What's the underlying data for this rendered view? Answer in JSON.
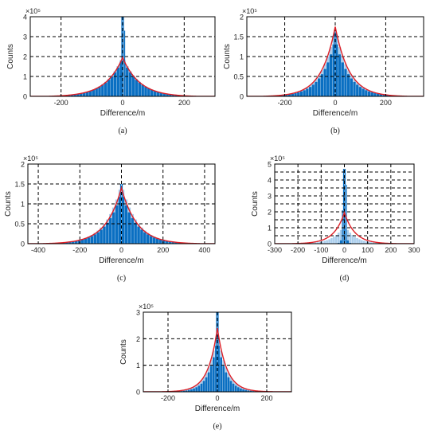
{
  "colors": {
    "bar_dark": "#0a6fc2",
    "bar_light": "#a9cdec",
    "fit_curve": "#dd1f26",
    "grid": "#000000",
    "axis": "#000000"
  },
  "chart_data": [
    {
      "type": "bar",
      "panel_label": "(a)",
      "xlabel": "Difference/m",
      "ylabel": "Counts",
      "y_exponent_label": "×10⁵",
      "xlim": [
        -300,
        300
      ],
      "ylim": [
        0,
        4
      ],
      "xticks": [
        -200,
        0,
        200
      ],
      "xtick_labels": [
        "-200",
        "0",
        "200"
      ],
      "yticks": [
        0,
        1,
        2,
        3,
        4
      ],
      "ytick_labels": [
        "0",
        "1",
        "2",
        "3",
        "4"
      ],
      "grid": true,
      "histogram": {
        "dark_scale": 1.9,
        "dark_width": 55,
        "dark_support": 290,
        "light_scale": 2.0,
        "light_width": 55,
        "light_support": 290,
        "spikes": [
          {
            "x": 0,
            "value": 4.0
          },
          {
            "x": 4,
            "value": 3.3
          }
        ]
      },
      "fit": {
        "peak": 1.95,
        "width": 55,
        "support": 250
      }
    },
    {
      "type": "bar",
      "panel_label": "(b)",
      "xlabel": "Difference/m",
      "ylabel": "Counts",
      "y_exponent_label": "×10⁵",
      "xlim": [
        -350,
        350
      ],
      "ylim": [
        0,
        2
      ],
      "xticks": [
        -200,
        0,
        200
      ],
      "xtick_labels": [
        "-200",
        "0",
        "200"
      ],
      "yticks": [
        0,
        0.5,
        1,
        1.5,
        2
      ],
      "ytick_labels": [
        "0",
        "0.5",
        "1",
        "1.5",
        "2"
      ],
      "grid": true,
      "histogram": {
        "dark_scale": 1.45,
        "dark_width": 55,
        "dark_support": 330,
        "light_scale": 1.7,
        "light_width": 55,
        "light_support": 330,
        "spikes": [
          {
            "x": 0,
            "value": 1.65
          }
        ]
      },
      "fit": {
        "peak": 1.75,
        "width": 55,
        "support": 300
      }
    },
    {
      "type": "bar",
      "panel_label": "(c)",
      "xlabel": "Difference/m",
      "ylabel": "Counts",
      "y_exponent_label": "×10⁵",
      "xlim": [
        -450,
        450
      ],
      "ylim": [
        0,
        2
      ],
      "xticks": [
        -400,
        -200,
        0,
        200,
        400
      ],
      "xtick_labels": [
        "-400",
        "-200",
        "0",
        "200",
        "400"
      ],
      "yticks": [
        0,
        0.5,
        1,
        1.5,
        2
      ],
      "ytick_labels": [
        "0",
        "0.5",
        "1",
        "1.5",
        "2"
      ],
      "grid": true,
      "histogram": {
        "dark_scale": 1.3,
        "dark_width": 75,
        "dark_support": 420,
        "light_scale": 1.5,
        "light_width": 75,
        "light_support": 420,
        "spikes": [
          {
            "x": 0,
            "value": 1.5
          }
        ]
      },
      "fit": {
        "peak": 1.4,
        "width": 75,
        "support": 400
      }
    },
    {
      "type": "bar",
      "panel_label": "(d)",
      "xlabel": "Difference/m",
      "ylabel": "Counts",
      "y_exponent_label": "×10⁵",
      "xlim": [
        -300,
        300
      ],
      "ylim": [
        0,
        5
      ],
      "xticks": [
        -300,
        -200,
        -100,
        0,
        100,
        200,
        300
      ],
      "xtick_labels": [
        "-300",
        "-200",
        "-100",
        "0",
        "100",
        "200",
        "300"
      ],
      "yticks": [
        0,
        0.5,
        1,
        1.5,
        2,
        2.5,
        3,
        3.5,
        4,
        4.5,
        5
      ],
      "ytick_labels": [
        "0",
        "0.5",
        "1",
        "1.5",
        "2",
        "2.5",
        "3",
        "3.5",
        "4",
        "4.5",
        "5"
      ],
      "grid": true,
      "histogram": {
        "dark_scale": 1.4,
        "dark_width": 8,
        "dark_support": 40,
        "light_scale": 1.2,
        "light_width": 45,
        "light_support": 280,
        "spikes": [
          {
            "x": 0,
            "value": 4.7
          },
          {
            "x": 5,
            "value": 3.7
          },
          {
            "x": -5,
            "value": 2.1
          }
        ]
      },
      "fit": {
        "peak": 1.95,
        "width": 45,
        "support": 250
      }
    },
    {
      "type": "bar",
      "panel_label": "(e)",
      "xlabel": "Difference/m",
      "ylabel": "Counts",
      "y_exponent_label": "×10⁵",
      "xlim": [
        -300,
        300
      ],
      "ylim": [
        0,
        3
      ],
      "xticks": [
        -200,
        0,
        200
      ],
      "xtick_labels": [
        "-200",
        "0",
        "200"
      ],
      "yticks": [
        0,
        1,
        2,
        3
      ],
      "ytick_labels": [
        "0",
        "1",
        "2",
        "3"
      ],
      "grid": true,
      "histogram": {
        "dark_scale": 2.0,
        "dark_width": 35,
        "dark_support": 200,
        "light_scale": 2.3,
        "light_width": 38,
        "light_support": 290,
        "spikes": [
          {
            "x": 0,
            "value": 3.05
          }
        ]
      },
      "fit": {
        "peak": 2.4,
        "width": 38,
        "support": 250
      }
    }
  ]
}
